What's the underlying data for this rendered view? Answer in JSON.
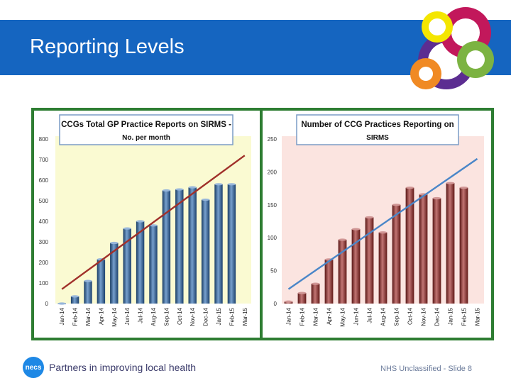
{
  "header": {
    "title": "Reporting Levels",
    "brand_color": "#1565c0"
  },
  "footer": {
    "logo_text": "necs",
    "tagline": "Partners in improving local health",
    "classification": "NHS Unclassified - Slide 8"
  },
  "chart_data": [
    {
      "type": "bar",
      "title_line1": "CCGs Total GP Practice Reports on SIRMS -",
      "title_line2": "No. per month",
      "categories": [
        "Jan-14",
        "Feb-14",
        "Mar-14",
        "Apr-14",
        "May-14",
        "Jun-14",
        "Jul-14",
        "Aug-14",
        "Sep-14",
        "Oct-14",
        "Nov-14",
        "Dec-14",
        "Jan-15",
        "Feb-15",
        "Mar-15"
      ],
      "values": [
        0,
        35,
        110,
        215,
        295,
        365,
        400,
        380,
        550,
        555,
        565,
        505,
        580,
        580,
        null
      ],
      "trend": {
        "start": 70,
        "end": 720
      },
      "yticks": [
        0,
        100,
        200,
        300,
        400,
        500,
        600,
        700,
        800
      ],
      "ylim": [
        0,
        800
      ],
      "bar_color": "#2e6db4",
      "trend_color": "#a0302a",
      "background": "#fafad2"
    },
    {
      "type": "bar",
      "title_line1": "Number of CCG Practices Reporting on",
      "title_line2": "SIRMS",
      "categories": [
        "Jan-14",
        "Feb-14",
        "Mar-14",
        "Apr-14",
        "May-14",
        "Jun-14",
        "Jul-14",
        "Aug-14",
        "Sep-14",
        "Oct-14",
        "Nov-14",
        "Dec-14",
        "Jan-15",
        "Feb-15",
        "Mar-15"
      ],
      "values": [
        3,
        16,
        30,
        67,
        97,
        113,
        131,
        108,
        150,
        176,
        166,
        160,
        183,
        176,
        null
      ],
      "trend": {
        "start": 22,
        "end": 220
      },
      "yticks": [
        0,
        50,
        100,
        150,
        200,
        250
      ],
      "ylim": [
        0,
        250
      ],
      "bar_color": "#a12a28",
      "trend_color": "#4a86c8",
      "background": "#fbe4e0"
    }
  ]
}
